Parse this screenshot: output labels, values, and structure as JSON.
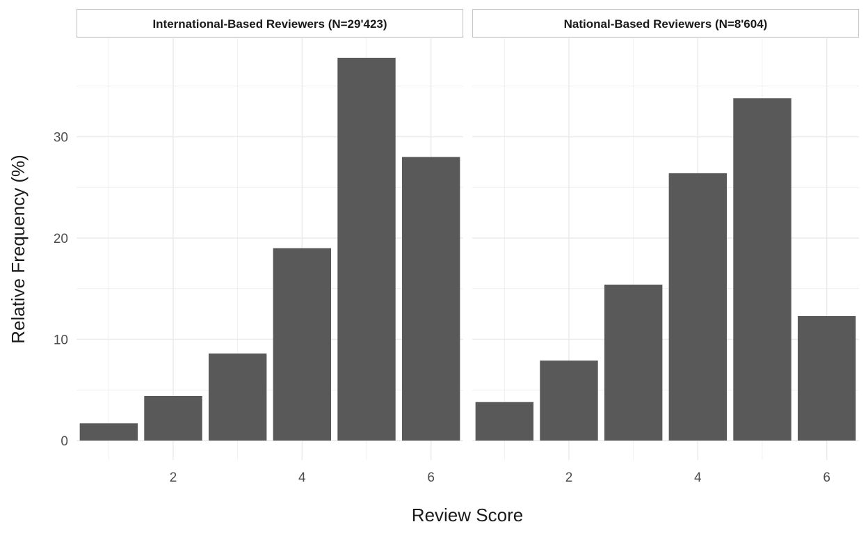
{
  "chart_data": {
    "type": "bar",
    "xlabel": "Review Score",
    "ylabel": "Relative Frequency (%)",
    "xlim": [
      0.5,
      6.5
    ],
    "ylim": [
      0,
      38
    ],
    "x_ticks": [
      2,
      4,
      6
    ],
    "y_ticks": [
      0,
      10,
      20,
      30
    ],
    "bar_color": "#595959",
    "grid_color": "#ebebeb",
    "panels": [
      {
        "title": "International-Based Reviewers (N=29'423)",
        "x": [
          1,
          2,
          3,
          4,
          5,
          6
        ],
        "values": [
          1.7,
          4.4,
          8.6,
          19.0,
          37.8,
          28.0
        ]
      },
      {
        "title": "National-Based Reviewers (N=8'604)",
        "x": [
          1,
          2,
          3,
          4,
          5,
          6
        ],
        "values": [
          3.8,
          7.9,
          15.4,
          26.4,
          33.8,
          12.3
        ]
      }
    ]
  }
}
